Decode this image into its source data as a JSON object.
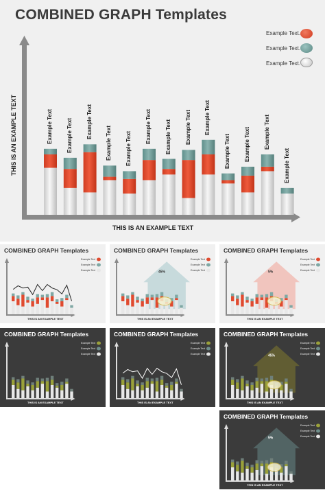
{
  "main": {
    "title": "COMBINED GRAPH Templates",
    "legend": [
      {
        "label": "Example Text.",
        "color": "#e04a2f"
      },
      {
        "label": "Example Text.",
        "color": "#6e9e9a"
      },
      {
        "label": "Example Text.",
        "color": "#e6e6e6"
      }
    ],
    "xlabel": "THIS IS AN EXAMPLE TEXT",
    "ylabel": "THIS IS AN EXAMPLE TEXT",
    "bar_label": "Example Text",
    "colors": {
      "red": "#e04a2f",
      "teal": "#6e9e9a",
      "gray": "#dcdcdc",
      "axis": "#8a8a8a"
    }
  },
  "chart_data": {
    "type": "bar",
    "stacked": true,
    "categories": [
      "Example Text",
      "Example Text",
      "Example Text",
      "Example Text",
      "Example Text",
      "Example Text",
      "Example Text",
      "Example Text",
      "Example Text",
      "Example Text",
      "Example Text",
      "Example Text",
      "Example Text"
    ],
    "series": [
      {
        "values": [
          42,
          24,
          20,
          31,
          19,
          31,
          36,
          15,
          36,
          28,
          20,
          39,
          19
        ]
      },
      {
        "values": [
          12,
          17,
          36,
          3,
          13,
          18,
          5,
          34,
          18,
          3,
          15,
          4,
          0
        ]
      },
      {
        "values": [
          5,
          10,
          7,
          10,
          7,
          10,
          9,
          9,
          13,
          6,
          8,
          11,
          5
        ]
      }
    ],
    "xlabel": "THIS IS AN EXAMPLE TEXT",
    "ylabel": "THIS IS AN EXAMPLE TEXT",
    "ylim": [
      0,
      100
    ],
    "legend": "top-right",
    "grid": false
  },
  "thumbnails": [
    {
      "title": "COMBINED GRAPH Templates",
      "theme": "light",
      "variant": "line"
    },
    {
      "title": "COMBINED GRAPH Templates",
      "theme": "light",
      "variant": "house-teal",
      "callout_pct": "45%"
    },
    {
      "title": "COMBINED GRAPH Templates",
      "theme": "light",
      "variant": "house-red",
      "callout_pct": "5%"
    },
    {
      "title": "COMBINED GRAPH Templates",
      "theme": "dark",
      "variant": "plain"
    },
    {
      "title": "COMBINED GRAPH Templates",
      "theme": "dark",
      "variant": "line"
    },
    {
      "title": "COMBINED GRAPH Templates",
      "theme": "dark",
      "variant": "house-yellow",
      "callout_pct": "45%"
    },
    {
      "title": "COMBINED GRAPH Templates",
      "theme": "dark",
      "variant": "house-teal",
      "callout_pct": "5%"
    }
  ],
  "thumb_legend_label": "Example Text",
  "thumb_xlabel": "THIS IS AN EXAMPLE TEXT"
}
